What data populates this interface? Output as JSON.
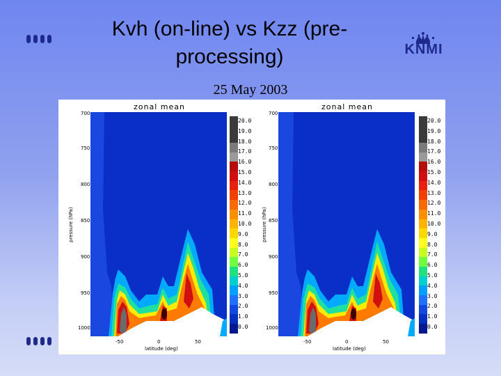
{
  "slide": {
    "title_line1": "Kvh (on-line) vs Kzz (pre-",
    "title_line2": "processing)",
    "subtitle": "25 May 2003",
    "logo_text": "KNMI"
  },
  "panels": [
    {
      "title": "zonal mean",
      "ylabel": "pressure (hPa)",
      "xlabel": "latitude (deg)",
      "yticks": [
        "700",
        "750",
        "800",
        "850",
        "900",
        "950",
        "1000"
      ],
      "xticks": [
        "-50",
        "0",
        "50"
      ]
    },
    {
      "title": "zonal mean",
      "ylabel": "pressure (hPa)",
      "xlabel": "latitude (deg)",
      "yticks": [
        "700",
        "750",
        "800",
        "850",
        "900",
        "950",
        "1000"
      ],
      "xticks": [
        "-50",
        "0",
        "50"
      ]
    }
  ],
  "colorbar": {
    "labels": [
      "20.0",
      "19.0",
      "18.0",
      "17.0",
      "16.0",
      "15.0",
      "14.0",
      "13.0",
      "12.0",
      "11.0",
      "10.0",
      "9.0",
      "8.0",
      "7.0",
      "6.0",
      "5.0",
      "4.0",
      "3.0",
      "2.0",
      "1.0",
      "0.0"
    ],
    "colors": [
      "#3a3a3a",
      "#7a7a7a",
      "#9a9a9a",
      "#b50d0d",
      "#d01010",
      "#e82010",
      "#f04000",
      "#f86a00",
      "#fa9000",
      "#ffb400",
      "#ffd800",
      "#ffff20",
      "#c8ff20",
      "#70ff40",
      "#20e080",
      "#00d0d0",
      "#00a0ff",
      "#2070ff",
      "#1048e0",
      "#0030c0",
      "#001890"
    ]
  }
}
